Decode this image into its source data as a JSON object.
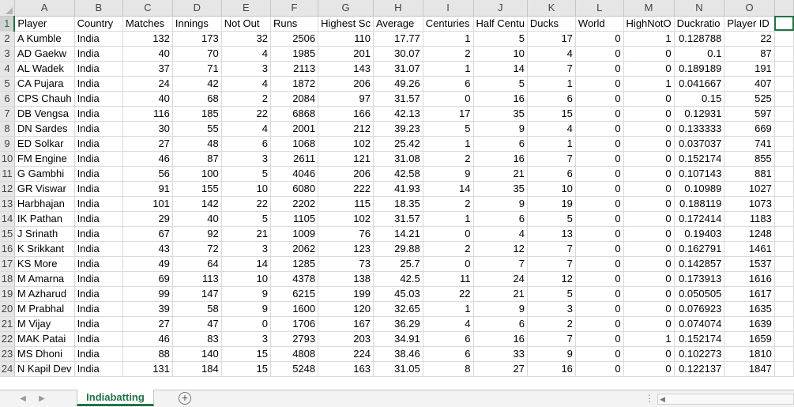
{
  "columns": [
    "A",
    "B",
    "C",
    "D",
    "E",
    "F",
    "G",
    "H",
    "I",
    "J",
    "K",
    "L",
    "M",
    "N",
    "O"
  ],
  "rows": [
    {
      "n": "1",
      "cells": [
        "Player",
        "Country",
        "Matches",
        "Innings",
        "Not Out",
        "Runs",
        "Highest Sc",
        "Average",
        "Centuries",
        "Half Centu",
        "Ducks",
        "World",
        "HighNotO",
        "Duckratio",
        "Player ID"
      ]
    },
    {
      "n": "2",
      "cells": [
        "A Kumble",
        "India",
        "132",
        "173",
        "32",
        "2506",
        "110",
        "17.77",
        "1",
        "5",
        "17",
        "0",
        "1",
        "0.128788",
        "22"
      ]
    },
    {
      "n": "3",
      "cells": [
        "AD Gaekw",
        "India",
        "40",
        "70",
        "4",
        "1985",
        "201",
        "30.07",
        "2",
        "10",
        "4",
        "0",
        "0",
        "0.1",
        "87"
      ]
    },
    {
      "n": "4",
      "cells": [
        "AL Wadek",
        "India",
        "37",
        "71",
        "3",
        "2113",
        "143",
        "31.07",
        "1",
        "14",
        "7",
        "0",
        "0",
        "0.189189",
        "191"
      ]
    },
    {
      "n": "5",
      "cells": [
        "CA Pujara",
        "India",
        "24",
        "42",
        "4",
        "1872",
        "206",
        "49.26",
        "6",
        "5",
        "1",
        "0",
        "1",
        "0.041667",
        "407"
      ]
    },
    {
      "n": "6",
      "cells": [
        "CPS Chauh",
        "India",
        "40",
        "68",
        "2",
        "2084",
        "97",
        "31.57",
        "0",
        "16",
        "6",
        "0",
        "0",
        "0.15",
        "525"
      ]
    },
    {
      "n": "7",
      "cells": [
        "DB Vengsa",
        "India",
        "116",
        "185",
        "22",
        "6868",
        "166",
        "42.13",
        "17",
        "35",
        "15",
        "0",
        "0",
        "0.12931",
        "597"
      ]
    },
    {
      "n": "8",
      "cells": [
        "DN Sardes",
        "India",
        "30",
        "55",
        "4",
        "2001",
        "212",
        "39.23",
        "5",
        "9",
        "4",
        "0",
        "0",
        "0.133333",
        "669"
      ]
    },
    {
      "n": "9",
      "cells": [
        "ED Solkar",
        "India",
        "27",
        "48",
        "6",
        "1068",
        "102",
        "25.42",
        "1",
        "6",
        "1",
        "0",
        "0",
        "0.037037",
        "741"
      ]
    },
    {
      "n": "10",
      "cells": [
        "FM Engine",
        "India",
        "46",
        "87",
        "3",
        "2611",
        "121",
        "31.08",
        "2",
        "16",
        "7",
        "0",
        "0",
        "0.152174",
        "855"
      ]
    },
    {
      "n": "11",
      "cells": [
        "G Gambhi",
        "India",
        "56",
        "100",
        "5",
        "4046",
        "206",
        "42.58",
        "9",
        "21",
        "6",
        "0",
        "0",
        "0.107143",
        "881"
      ]
    },
    {
      "n": "12",
      "cells": [
        "GR Viswar",
        "India",
        "91",
        "155",
        "10",
        "6080",
        "222",
        "41.93",
        "14",
        "35",
        "10",
        "0",
        "0",
        "0.10989",
        "1027"
      ]
    },
    {
      "n": "13",
      "cells": [
        "Harbhajan",
        "India",
        "101",
        "142",
        "22",
        "2202",
        "115",
        "18.35",
        "2",
        "9",
        "19",
        "0",
        "0",
        "0.188119",
        "1073"
      ]
    },
    {
      "n": "14",
      "cells": [
        "IK Pathan",
        "India",
        "29",
        "40",
        "5",
        "1105",
        "102",
        "31.57",
        "1",
        "6",
        "5",
        "0",
        "0",
        "0.172414",
        "1183"
      ]
    },
    {
      "n": "15",
      "cells": [
        "J Srinath",
        "India",
        "67",
        "92",
        "21",
        "1009",
        "76",
        "14.21",
        "0",
        "4",
        "13",
        "0",
        "0",
        "0.19403",
        "1248"
      ]
    },
    {
      "n": "16",
      "cells": [
        "K Srikkant",
        "India",
        "43",
        "72",
        "3",
        "2062",
        "123",
        "29.88",
        "2",
        "12",
        "7",
        "0",
        "0",
        "0.162791",
        "1461"
      ]
    },
    {
      "n": "17",
      "cells": [
        "KS More",
        "India",
        "49",
        "64",
        "14",
        "1285",
        "73",
        "25.7",
        "0",
        "7",
        "7",
        "0",
        "0",
        "0.142857",
        "1537"
      ]
    },
    {
      "n": "18",
      "cells": [
        "M Amarna",
        "India",
        "69",
        "113",
        "10",
        "4378",
        "138",
        "42.5",
        "11",
        "24",
        "12",
        "0",
        "0",
        "0.173913",
        "1616"
      ]
    },
    {
      "n": "19",
      "cells": [
        "M Azharud",
        "India",
        "99",
        "147",
        "9",
        "6215",
        "199",
        "45.03",
        "22",
        "21",
        "5",
        "0",
        "0",
        "0.050505",
        "1617"
      ]
    },
    {
      "n": "20",
      "cells": [
        "M Prabhal",
        "India",
        "39",
        "58",
        "9",
        "1600",
        "120",
        "32.65",
        "1",
        "9",
        "3",
        "0",
        "0",
        "0.076923",
        "1635"
      ]
    },
    {
      "n": "21",
      "cells": [
        "M Vijay",
        "India",
        "27",
        "47",
        "0",
        "1706",
        "167",
        "36.29",
        "4",
        "6",
        "2",
        "0",
        "0",
        "0.074074",
        "1639"
      ]
    },
    {
      "n": "22",
      "cells": [
        "MAK Patai",
        "India",
        "46",
        "83",
        "3",
        "2793",
        "203",
        "34.91",
        "6",
        "16",
        "7",
        "0",
        "1",
        "0.152174",
        "1659"
      ]
    },
    {
      "n": "23",
      "cells": [
        "MS Dhoni",
        "India",
        "88",
        "140",
        "15",
        "4808",
        "224",
        "38.46",
        "6",
        "33",
        "9",
        "0",
        "0",
        "0.102273",
        "1810"
      ]
    },
    {
      "n": "24",
      "cells": [
        "N Kapil Dev",
        "India",
        "131",
        "184",
        "15",
        "5248",
        "163",
        "31.05",
        "8",
        "27",
        "16",
        "0",
        "0",
        "0.122137",
        "1847"
      ]
    }
  ],
  "sheet_tab": "Indiabatting",
  "add_sheet_icon": "plus-circle-icon",
  "colors": {
    "accent": "#217346",
    "header_bg": "#e6e6e6",
    "gridline": "#dadada"
  }
}
